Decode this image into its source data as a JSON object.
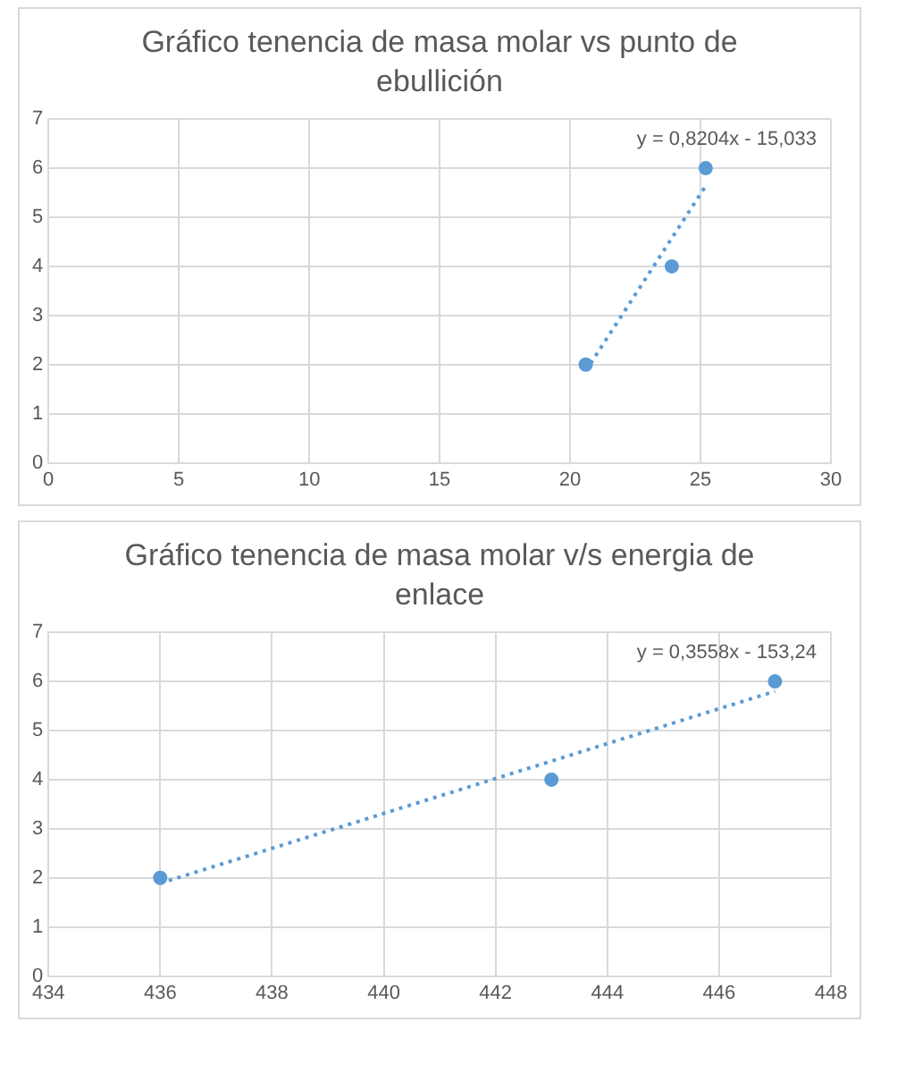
{
  "chart_data": [
    {
      "type": "scatter",
      "title": "Gráfico tenencia de masa molar vs punto de ebullición",
      "x": [
        20.6,
        23.9,
        25.2
      ],
      "xlim": [
        0,
        30
      ],
      "xticks": [
        0,
        5,
        10,
        15,
        20,
        25,
        30
      ],
      "ylim": [
        0,
        7
      ],
      "yticks": [
        0,
        1,
        2,
        3,
        4,
        5,
        6,
        7
      ],
      "grid": true,
      "marker": "circle",
      "series": [
        {
          "color": "#5b9bd5",
          "values": [
            2,
            4,
            6
          ]
        },
        {
          "type": "line",
          "line_style": "dotted",
          "marker": "none",
          "color": "#5b9bd5",
          "x": [
            20.6,
            25.2
          ],
          "values": [
            1.87,
            5.64
          ]
        }
      ],
      "annotations": [
        "y = 0,8204x - 15,033"
      ]
    },
    {
      "type": "scatter",
      "title": "Gráfico tenencia de masa molar v/s energia de enlace",
      "x": [
        436,
        443,
        447
      ],
      "xlim": [
        434,
        448
      ],
      "xticks": [
        434,
        436,
        438,
        440,
        442,
        444,
        446,
        448
      ],
      "ylim": [
        0,
        7
      ],
      "yticks": [
        0,
        1,
        2,
        3,
        4,
        5,
        6,
        7
      ],
      "grid": true,
      "marker": "circle",
      "series": [
        {
          "color": "#5b9bd5",
          "values": [
            2,
            4,
            6
          ]
        },
        {
          "type": "line",
          "line_style": "dotted",
          "marker": "none",
          "color": "#5b9bd5",
          "x": [
            436,
            447
          ],
          "values": [
            1.89,
            5.8
          ]
        }
      ],
      "annotations": [
        "y = 0,3558x - 153,24"
      ]
    }
  ]
}
